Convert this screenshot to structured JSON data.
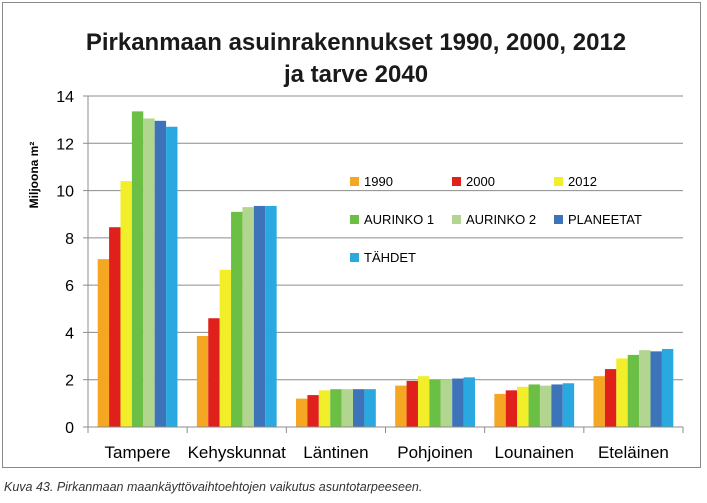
{
  "chart_data": {
    "type": "bar",
    "title_lines": [
      "Pirkanmaan asuinrakennukset 1990, 2000, 2012",
      "ja tarve 2040"
    ],
    "ylabel": "Miljoona m²",
    "xlabel": "",
    "ylim": [
      0,
      14
    ],
    "yticks": [
      "0",
      "2",
      "4",
      "6",
      "8",
      "10",
      "12",
      "14"
    ],
    "grid": true,
    "legend_position": "center-right",
    "categories": [
      "Tampere",
      "Kehyskunnat",
      "Läntinen",
      "Pohjoinen",
      "Lounainen",
      "Eteläinen"
    ],
    "series": [
      {
        "name": "1990",
        "color": "#f5a623",
        "values": [
          7.1,
          3.85,
          1.2,
          1.75,
          1.4,
          2.15
        ]
      },
      {
        "name": "2000",
        "color": "#e0201b",
        "values": [
          8.45,
          4.6,
          1.35,
          1.95,
          1.55,
          2.45
        ]
      },
      {
        "name": "2012",
        "color": "#f2ee2a",
        "values": [
          10.4,
          6.65,
          1.55,
          2.15,
          1.7,
          2.9
        ]
      },
      {
        "name": "AURINKO 1",
        "color": "#6cbf45",
        "values": [
          13.35,
          9.1,
          1.6,
          2.0,
          1.8,
          3.05
        ]
      },
      {
        "name": "AURINKO 2",
        "color": "#b2d68f",
        "values": [
          13.05,
          9.3,
          1.6,
          2.0,
          1.75,
          3.25
        ]
      },
      {
        "name": "PLANEETAT",
        "color": "#3d74b9",
        "values": [
          12.95,
          9.35,
          1.6,
          2.05,
          1.8,
          3.2
        ]
      },
      {
        "name": "TÄHDET",
        "color": "#2aa9e0",
        "values": [
          12.7,
          9.35,
          1.6,
          2.1,
          1.85,
          3.3
        ]
      }
    ]
  },
  "caption": "Kuva 43. Pirkanmaan maankäyttövaihtoehtojen vaikutus asuntotarpeeseen."
}
